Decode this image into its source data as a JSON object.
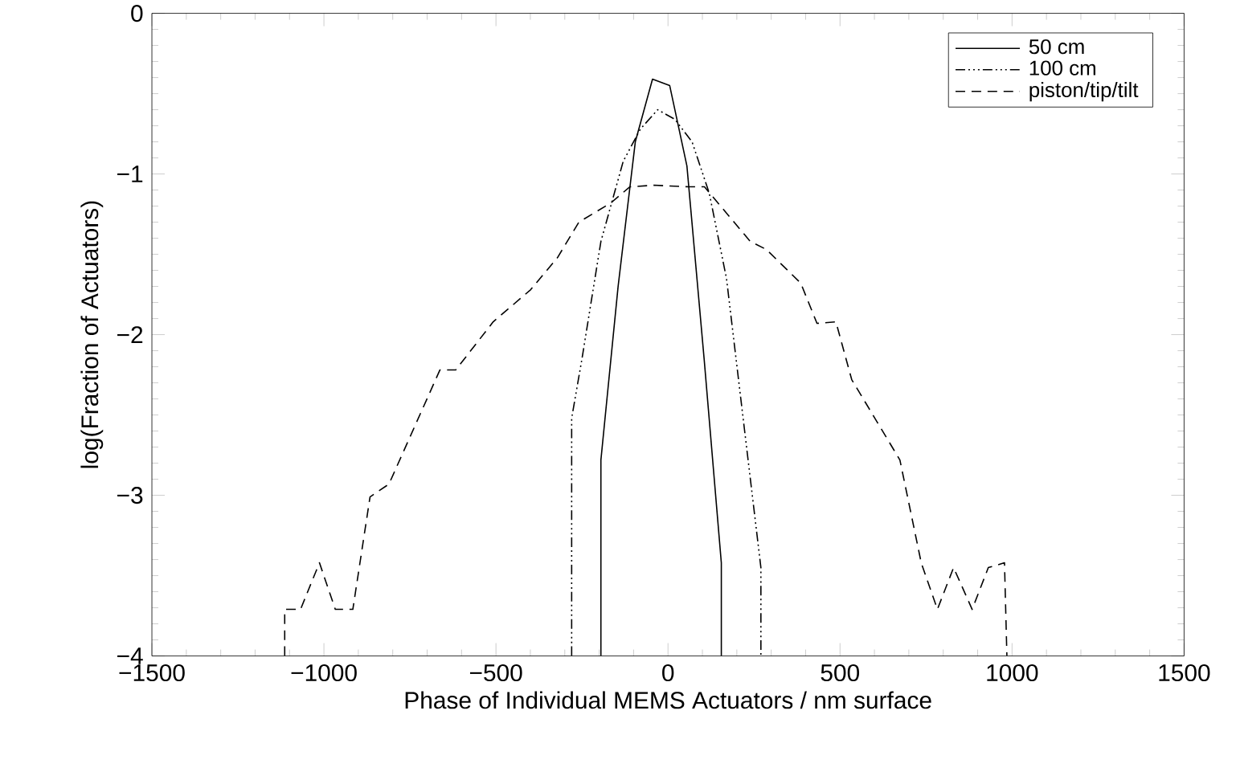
{
  "chart_data": {
    "type": "line",
    "xlabel": "Phase of Individual MEMS Actuators / nm surface",
    "ylabel": "log(Fraction of Actuators)",
    "xlim": [
      -1500,
      1500
    ],
    "ylim": [
      -4,
      0
    ],
    "xticks": [
      {
        "value": -1500,
        "label": "−1500"
      },
      {
        "value": -1000,
        "label": "−1000"
      },
      {
        "value": -500,
        "label": "−500"
      },
      0,
      500,
      1000,
      1500
    ],
    "yticks": [
      {
        "value": -4,
        "label": "−4"
      },
      {
        "value": -3,
        "label": "−3"
      },
      {
        "value": -2,
        "label": "−2"
      },
      {
        "value": -1,
        "label": "−1"
      },
      0
    ],
    "grid": false,
    "legend": "top right",
    "marker": "none",
    "series": [
      {
        "name": "50 cm",
        "color": "#000000",
        "line_style": "solid",
        "x": [
          -195,
          -195,
          -145,
          -95,
          -45,
          5,
          55,
          105,
          155,
          155
        ],
        "values": [
          -4,
          -2.78,
          -1.7,
          -0.8,
          -0.41,
          -0.45,
          -0.95,
          -2.15,
          -3.42,
          -4
        ]
      },
      {
        "name": "100 cm",
        "color": "#000000",
        "line_style": "dashdotdotted",
        "x": [
          -280,
          -280,
          -250,
          -195,
          -130,
          -80,
          -30,
          20,
          70,
          120,
          170,
          220,
          270,
          270
        ],
        "values": [
          -4,
          -2.52,
          -2.15,
          -1.42,
          -0.92,
          -0.72,
          -0.6,
          -0.66,
          -0.8,
          -1.12,
          -1.65,
          -2.55,
          -3.45,
          -4
        ]
      },
      {
        "name": "piston/tip/tilt",
        "color": "#000000",
        "line_style": "dashed",
        "x": [
          -1114,
          -1114,
          -1068,
          -1013,
          -967,
          -916,
          -866,
          -811,
          -663,
          -617,
          -508,
          -399,
          -321,
          -259,
          -166,
          -111,
          -41,
          60,
          106,
          239,
          286,
          386,
          433,
          488,
          534,
          674,
          736,
          783,
          830,
          884,
          931,
          978,
          985
        ],
        "values": [
          -4,
          -3.71,
          -3.71,
          -3.42,
          -3.71,
          -3.71,
          -3.01,
          -2.93,
          -2.22,
          -2.22,
          -1.92,
          -1.72,
          -1.52,
          -1.3,
          -1.18,
          -1.08,
          -1.07,
          -1.08,
          -1.08,
          -1.42,
          -1.47,
          -1.68,
          -1.93,
          -1.92,
          -2.28,
          -2.78,
          -3.42,
          -3.71,
          -3.45,
          -3.71,
          -3.45,
          -3.42,
          -4
        ]
      }
    ]
  }
}
